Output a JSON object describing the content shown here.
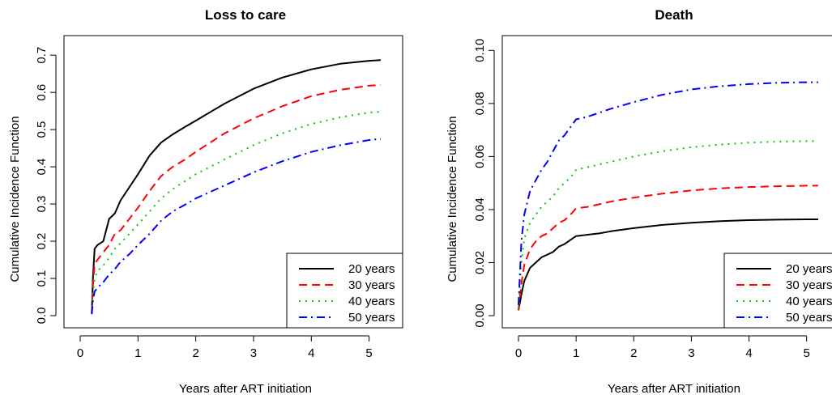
{
  "chart_data": [
    {
      "type": "line",
      "title": "Loss to care",
      "xlabel": "Years after ART initiation",
      "ylabel": "Cumulative Incidence Function",
      "xlim": [
        0,
        5.3
      ],
      "ylim": [
        0,
        0.72
      ],
      "xticks": [
        "0",
        "1",
        "2",
        "3",
        "4",
        "5"
      ],
      "yticks": [
        "0.0",
        "0.1",
        "0.2",
        "0.3",
        "0.4",
        "0.5",
        "0.6",
        "0.7"
      ],
      "legend_position": "bottom-right",
      "grid": false,
      "series": [
        {
          "name": "20 years",
          "color": "#000000",
          "style": "solid",
          "x": [
            0.2,
            0.22,
            0.25,
            0.3,
            0.4,
            0.5,
            0.6,
            0.7,
            0.85,
            1.0,
            1.2,
            1.4,
            1.6,
            1.8,
            2.0,
            2.5,
            3.0,
            3.5,
            4.0,
            4.5,
            5.0,
            5.2
          ],
          "y": [
            0.008,
            0.1,
            0.18,
            0.19,
            0.2,
            0.26,
            0.275,
            0.31,
            0.345,
            0.38,
            0.43,
            0.465,
            0.487,
            0.506,
            0.524,
            0.57,
            0.61,
            0.64,
            0.662,
            0.677,
            0.685,
            0.687
          ]
        },
        {
          "name": "30 years",
          "color": "#ff0000",
          "style": "dashed",
          "x": [
            0.2,
            0.22,
            0.25,
            0.3,
            0.4,
            0.5,
            0.6,
            0.7,
            0.85,
            1.0,
            1.2,
            1.4,
            1.6,
            1.8,
            2.0,
            2.5,
            3.0,
            3.5,
            4.0,
            4.5,
            5.0,
            5.2
          ],
          "y": [
            0.006,
            0.08,
            0.14,
            0.15,
            0.17,
            0.19,
            0.22,
            0.23,
            0.26,
            0.29,
            0.335,
            0.375,
            0.4,
            0.418,
            0.44,
            0.49,
            0.53,
            0.563,
            0.59,
            0.607,
            0.618,
            0.62
          ]
        },
        {
          "name": "40 years",
          "color": "#00cc00",
          "style": "dotted",
          "x": [
            0.2,
            0.22,
            0.25,
            0.3,
            0.4,
            0.5,
            0.6,
            0.7,
            0.85,
            1.0,
            1.2,
            1.4,
            1.6,
            1.8,
            2.0,
            2.5,
            3.0,
            3.5,
            4.0,
            4.5,
            5.0,
            5.2
          ],
          "y": [
            0.005,
            0.06,
            0.1,
            0.12,
            0.135,
            0.155,
            0.18,
            0.195,
            0.22,
            0.245,
            0.28,
            0.315,
            0.34,
            0.36,
            0.38,
            0.42,
            0.458,
            0.49,
            0.515,
            0.533,
            0.546,
            0.548
          ]
        },
        {
          "name": "50 years",
          "color": "#0000ff",
          "style": "dashdot",
          "x": [
            0.2,
            0.22,
            0.25,
            0.3,
            0.4,
            0.5,
            0.6,
            0.7,
            0.85,
            1.0,
            1.2,
            1.4,
            1.6,
            1.8,
            2.0,
            2.5,
            3.0,
            3.5,
            4.0,
            4.5,
            5.0,
            5.2
          ],
          "y": [
            0.004,
            0.04,
            0.065,
            0.075,
            0.09,
            0.11,
            0.125,
            0.145,
            0.165,
            0.19,
            0.22,
            0.255,
            0.28,
            0.297,
            0.315,
            0.35,
            0.385,
            0.415,
            0.44,
            0.458,
            0.472,
            0.475
          ]
        }
      ]
    },
    {
      "type": "line",
      "title": "Death",
      "xlabel": "Years after ART initiation",
      "ylabel": "Cumulative Incidence Function",
      "xlim": [
        0,
        5.3
      ],
      "ylim": [
        0,
        0.101
      ],
      "xticks": [
        "0",
        "1",
        "2",
        "3",
        "4",
        "5"
      ],
      "yticks": [
        "0.00",
        "0.02",
        "0.04",
        "0.06",
        "0.08",
        "0.10"
      ],
      "legend_position": "bottom-right",
      "grid": false,
      "series": [
        {
          "name": "20 years",
          "color": "#000000",
          "style": "solid",
          "x": [
            0.0,
            0.05,
            0.1,
            0.2,
            0.3,
            0.4,
            0.5,
            0.6,
            0.7,
            0.8,
            0.9,
            1.0,
            1.2,
            1.4,
            1.6,
            2.0,
            2.5,
            3.0,
            3.5,
            4.0,
            4.5,
            5.0,
            5.2
          ],
          "y": [
            0.002,
            0.008,
            0.013,
            0.018,
            0.02,
            0.022,
            0.023,
            0.024,
            0.026,
            0.027,
            0.0285,
            0.03,
            0.0305,
            0.031,
            0.0318,
            0.033,
            0.0342,
            0.035,
            0.0356,
            0.036,
            0.0362,
            0.0363,
            0.0363
          ]
        },
        {
          "name": "30 years",
          "color": "#ff0000",
          "style": "dashed",
          "x": [
            0.0,
            0.05,
            0.1,
            0.2,
            0.3,
            0.4,
            0.5,
            0.6,
            0.7,
            0.8,
            0.9,
            1.0,
            1.2,
            1.4,
            1.6,
            2.0,
            2.5,
            3.0,
            3.5,
            4.0,
            4.5,
            5.0,
            5.2
          ],
          "y": [
            0.002,
            0.012,
            0.019,
            0.025,
            0.028,
            0.03,
            0.031,
            0.033,
            0.035,
            0.036,
            0.038,
            0.0405,
            0.041,
            0.042,
            0.043,
            0.0445,
            0.046,
            0.0472,
            0.048,
            0.0485,
            0.0488,
            0.049,
            0.049
          ]
        },
        {
          "name": "40 years",
          "color": "#00cc00",
          "style": "dotted",
          "x": [
            0.0,
            0.05,
            0.1,
            0.2,
            0.3,
            0.4,
            0.5,
            0.6,
            0.7,
            0.8,
            0.9,
            1.0,
            1.2,
            1.4,
            1.6,
            2.0,
            2.5,
            3.0,
            3.5,
            4.0,
            4.5,
            5.0,
            5.2
          ],
          "y": [
            0.003,
            0.02,
            0.029,
            0.035,
            0.038,
            0.041,
            0.043,
            0.045,
            0.048,
            0.05,
            0.052,
            0.055,
            0.056,
            0.057,
            0.058,
            0.06,
            0.062,
            0.0635,
            0.0645,
            0.0652,
            0.0656,
            0.0658,
            0.0658
          ]
        },
        {
          "name": "50 years",
          "color": "#0000ff",
          "style": "dashdot",
          "x": [
            0.0,
            0.05,
            0.1,
            0.2,
            0.3,
            0.4,
            0.5,
            0.6,
            0.7,
            0.8,
            0.9,
            1.0,
            1.2,
            1.4,
            1.6,
            2.0,
            2.5,
            3.0,
            3.5,
            4.0,
            4.5,
            5.0,
            5.2
          ],
          "y": [
            0.004,
            0.028,
            0.038,
            0.047,
            0.051,
            0.055,
            0.058,
            0.062,
            0.066,
            0.068,
            0.071,
            0.074,
            0.075,
            0.0765,
            0.078,
            0.0805,
            0.0833,
            0.0853,
            0.0865,
            0.0873,
            0.0878,
            0.088,
            0.088
          ]
        }
      ]
    }
  ]
}
